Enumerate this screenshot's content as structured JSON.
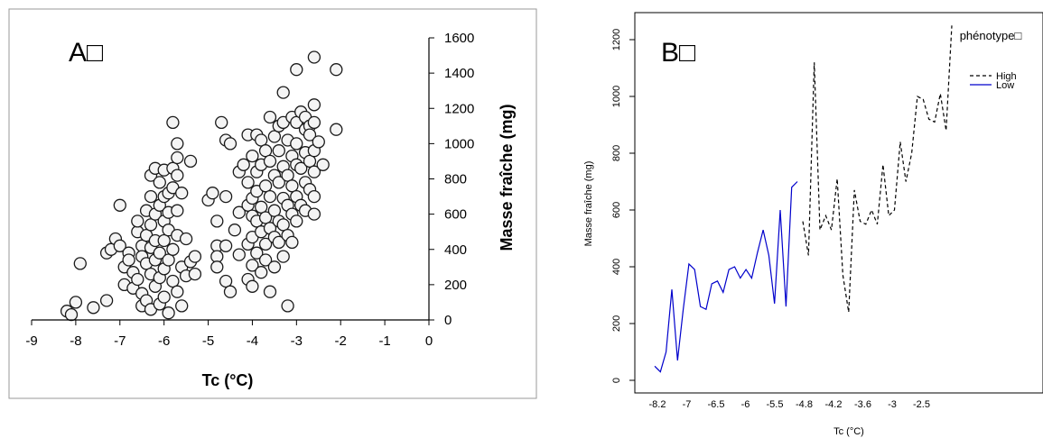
{
  "chart_data": [
    {
      "type": "scatter",
      "panel_label": "A□",
      "xlabel": "Tc (°C)",
      "ylabel": "Masse fraîche (mg)",
      "xlim": [
        -9,
        0
      ],
      "ylim": [
        0,
        1600
      ],
      "x_ticks": [
        "-9",
        "-8",
        "-7",
        "-6",
        "-5",
        "-4",
        "-3",
        "-2",
        "-1",
        "0"
      ],
      "y_ticks": [
        "0",
        "200",
        "400",
        "600",
        "800",
        "1000",
        "1200",
        "1400",
        "1600"
      ],
      "grid": false,
      "points": [
        [
          -8.2,
          50
        ],
        [
          -8.1,
          30
        ],
        [
          -8.0,
          100
        ],
        [
          -7.9,
          320
        ],
        [
          -7.6,
          70
        ],
        [
          -7.3,
          110
        ],
        [
          -7.3,
          380
        ],
        [
          -7.2,
          400
        ],
        [
          -7.1,
          460
        ],
        [
          -7.0,
          650
        ],
        [
          -7.0,
          420
        ],
        [
          -6.9,
          300
        ],
        [
          -6.9,
          200
        ],
        [
          -6.8,
          380
        ],
        [
          -6.8,
          340
        ],
        [
          -6.7,
          270
        ],
        [
          -6.7,
          180
        ],
        [
          -6.6,
          500
        ],
        [
          -6.6,
          560
        ],
        [
          -6.6,
          230
        ],
        [
          -6.5,
          420
        ],
        [
          -6.5,
          360
        ],
        [
          -6.5,
          150
        ],
        [
          -6.5,
          80
        ],
        [
          -6.4,
          620
        ],
        [
          -6.4,
          480
        ],
        [
          -6.4,
          320
        ],
        [
          -6.4,
          110
        ],
        [
          -6.3,
          700
        ],
        [
          -6.3,
          820
        ],
        [
          -6.3,
          540
        ],
        [
          -6.3,
          410
        ],
        [
          -6.3,
          260
        ],
        [
          -6.3,
          60
        ],
        [
          -6.2,
          860
        ],
        [
          -6.2,
          600
        ],
        [
          -6.2,
          450
        ],
        [
          -6.2,
          340
        ],
        [
          -6.2,
          190
        ],
        [
          -6.1,
          780
        ],
        [
          -6.1,
          650
        ],
        [
          -6.1,
          380
        ],
        [
          -6.1,
          240
        ],
        [
          -6.1,
          90
        ],
        [
          -6.0,
          850
        ],
        [
          -6.0,
          700
        ],
        [
          -6.0,
          560
        ],
        [
          -6.0,
          450
        ],
        [
          -6.0,
          290
        ],
        [
          -6.0,
          130
        ],
        [
          -5.9,
          720
        ],
        [
          -5.9,
          610
        ],
        [
          -5.9,
          510
        ],
        [
          -5.9,
          340
        ],
        [
          -5.9,
          40
        ],
        [
          -5.8,
          1120
        ],
        [
          -5.8,
          860
        ],
        [
          -5.8,
          750
        ],
        [
          -5.8,
          400
        ],
        [
          -5.8,
          220
        ],
        [
          -5.7,
          1000
        ],
        [
          -5.7,
          920
        ],
        [
          -5.7,
          820
        ],
        [
          -5.7,
          620
        ],
        [
          -5.7,
          480
        ],
        [
          -5.7,
          160
        ],
        [
          -5.6,
          720
        ],
        [
          -5.6,
          300
        ],
        [
          -5.6,
          80
        ],
        [
          -5.5,
          460
        ],
        [
          -5.5,
          250
        ],
        [
          -5.4,
          900
        ],
        [
          -5.4,
          330
        ],
        [
          -5.3,
          360
        ],
        [
          -5.3,
          260
        ],
        [
          -5.0,
          680
        ],
        [
          -4.9,
          720
        ],
        [
          -4.8,
          560
        ],
        [
          -4.8,
          420
        ],
        [
          -4.8,
          360
        ],
        [
          -4.8,
          300
        ],
        [
          -4.7,
          1120
        ],
        [
          -4.6,
          1020
        ],
        [
          -4.6,
          700
        ],
        [
          -4.6,
          420
        ],
        [
          -4.6,
          220
        ],
        [
          -4.5,
          1000
        ],
        [
          -4.5,
          160
        ],
        [
          -4.4,
          510
        ],
        [
          -4.3,
          840
        ],
        [
          -4.3,
          610
        ],
        [
          -4.3,
          370
        ],
        [
          -4.2,
          880
        ],
        [
          -4.1,
          1050
        ],
        [
          -4.1,
          780
        ],
        [
          -4.1,
          650
        ],
        [
          -4.1,
          430
        ],
        [
          -4.1,
          230
        ],
        [
          -4.0,
          930
        ],
        [
          -4.0,
          690
        ],
        [
          -4.0,
          590
        ],
        [
          -4.0,
          470
        ],
        [
          -4.0,
          310
        ],
        [
          -4.0,
          190
        ],
        [
          -3.9,
          1050
        ],
        [
          -3.9,
          840
        ],
        [
          -3.9,
          730
        ],
        [
          -3.9,
          560
        ],
        [
          -3.9,
          380
        ],
        [
          -3.8,
          1020
        ],
        [
          -3.8,
          880
        ],
        [
          -3.8,
          640
        ],
        [
          -3.8,
          500
        ],
        [
          -3.8,
          270
        ],
        [
          -3.7,
          960
        ],
        [
          -3.7,
          760
        ],
        [
          -3.7,
          580
        ],
        [
          -3.7,
          430
        ],
        [
          -3.7,
          340
        ],
        [
          -3.6,
          1150
        ],
        [
          -3.6,
          900
        ],
        [
          -3.6,
          700
        ],
        [
          -3.6,
          520
        ],
        [
          -3.6,
          160
        ],
        [
          -3.5,
          1040
        ],
        [
          -3.5,
          820
        ],
        [
          -3.5,
          620
        ],
        [
          -3.5,
          470
        ],
        [
          -3.5,
          300
        ],
        [
          -3.4,
          1100
        ],
        [
          -3.4,
          960
        ],
        [
          -3.4,
          780
        ],
        [
          -3.4,
          560
        ],
        [
          -3.4,
          440
        ],
        [
          -3.3,
          1290
        ],
        [
          -3.3,
          1120
        ],
        [
          -3.3,
          870
        ],
        [
          -3.3,
          690
        ],
        [
          -3.3,
          540
        ],
        [
          -3.3,
          360
        ],
        [
          -3.2,
          1020
        ],
        [
          -3.2,
          820
        ],
        [
          -3.2,
          650
        ],
        [
          -3.2,
          480
        ],
        [
          -3.2,
          80
        ],
        [
          -3.1,
          1150
        ],
        [
          -3.1,
          930
        ],
        [
          -3.1,
          760
        ],
        [
          -3.1,
          600
        ],
        [
          -3.1,
          440
        ],
        [
          -3.0,
          1420
        ],
        [
          -3.0,
          1120
        ],
        [
          -3.0,
          1000
        ],
        [
          -3.0,
          880
        ],
        [
          -3.0,
          700
        ],
        [
          -3.0,
          560
        ],
        [
          -2.9,
          1180
        ],
        [
          -2.9,
          860
        ],
        [
          -2.9,
          650
        ],
        [
          -2.8,
          1150
        ],
        [
          -2.8,
          1080
        ],
        [
          -2.8,
          950
        ],
        [
          -2.8,
          780
        ],
        [
          -2.8,
          620
        ],
        [
          -2.7,
          1100
        ],
        [
          -2.7,
          1050
        ],
        [
          -2.7,
          900
        ],
        [
          -2.7,
          740
        ],
        [
          -2.6,
          1490
        ],
        [
          -2.6,
          1220
        ],
        [
          -2.6,
          1120
        ],
        [
          -2.6,
          960
        ],
        [
          -2.6,
          840
        ],
        [
          -2.6,
          700
        ],
        [
          -2.6,
          600
        ],
        [
          -2.5,
          1010
        ],
        [
          -2.4,
          880
        ],
        [
          -2.1,
          1420
        ],
        [
          -2.1,
          1080
        ]
      ]
    },
    {
      "type": "line",
      "panel_label": "B□",
      "xlabel": "Tc (°C)",
      "ylabel": "Masse fraîche (mg)",
      "ylim": [
        0,
        1200
      ],
      "x_ticks": [
        "-8.2",
        "-7",
        "-6.5",
        "-6",
        "-5.5",
        "-4.8",
        "-4.2",
        "-3.6",
        "-3",
        "-2.5"
      ],
      "y_ticks": [
        "0",
        "200",
        "400",
        "600",
        "800",
        "1000",
        "1200"
      ],
      "grid": false,
      "legend_title": "phénotype□",
      "legend_position": "top-right",
      "series": [
        {
          "name": "High",
          "color": "#000000",
          "dash": true,
          "values": [
            560,
            440,
            1120,
            530,
            580,
            530,
            710,
            370,
            240,
            670,
            560,
            550,
            600,
            550,
            760,
            580,
            600,
            840,
            700,
            800,
            1000,
            990,
            920,
            910,
            1010,
            880,
            1250
          ]
        },
        {
          "name": "Low",
          "color": "#0000cc",
          "dash": false,
          "values": [
            50,
            30,
            100,
            320,
            70,
            250,
            410,
            390,
            260,
            250,
            340,
            350,
            310,
            390,
            400,
            360,
            390,
            360,
            450,
            530,
            440,
            270,
            600,
            260,
            680,
            700
          ]
        }
      ]
    }
  ]
}
